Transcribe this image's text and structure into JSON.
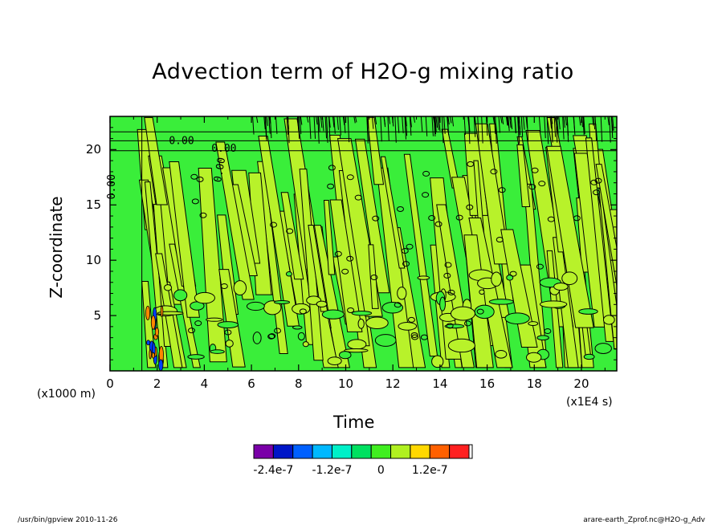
{
  "chart_data": {
    "type": "heatmap",
    "title": "Advection term of H2O-g mixing ratio",
    "xlabel": "Time",
    "ylabel": "Z-coordinate",
    "x_unit": "(x1E4 s)",
    "y_unit": "(x1000 m)",
    "xlim": [
      0,
      21.5
    ],
    "ylim": [
      0,
      23
    ],
    "x_ticks": [
      "0",
      "2",
      "4",
      "6",
      "8",
      "10",
      "12",
      "14",
      "16",
      "18",
      "20"
    ],
    "y_ticks": [
      "5",
      "10",
      "15",
      "20"
    ],
    "contour_labels": [
      "0.00",
      "0.00",
      "0.00",
      "0.00"
    ],
    "colorbar": {
      "labels": [
        "-2.4e-7",
        "-1.2e-7",
        "0",
        "1.2e-7"
      ],
      "colors": [
        "#7a00a8",
        "#0016c8",
        "#0060ff",
        "#00b8ff",
        "#00f0c8",
        "#00e060",
        "#40ee20",
        "#b0f020",
        "#ffd800",
        "#ff6000",
        "#ff2020"
      ]
    },
    "field_colors": {
      "background": "#3aee3a",
      "positive": "#b8f22a",
      "negative_strong": "#0040ff",
      "positive_strong": "#ff8800"
    }
  },
  "footer": {
    "left": "/usr/bin/gpview  2010-11-26",
    "right": "arare-earth_Zprof.nc@H2O-g_Adv"
  }
}
